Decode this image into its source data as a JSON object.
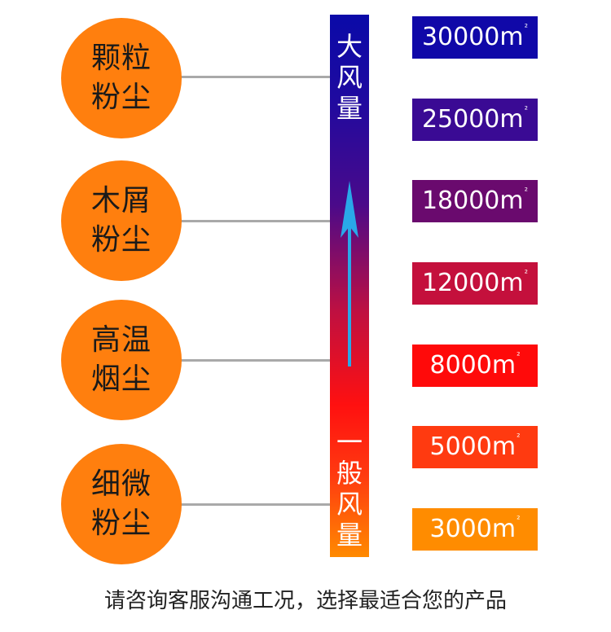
{
  "categories": [
    {
      "line1": "颗粒",
      "line2": "粉尘"
    },
    {
      "line1": "木屑",
      "line2": "粉尘"
    },
    {
      "line1": "高温",
      "line2": "烟尘"
    },
    {
      "line1": "细微",
      "line2": "粉尘"
    }
  ],
  "scale": {
    "top_label": [
      "大",
      "风",
      "量"
    ],
    "bottom_label": [
      "一",
      "般",
      "风",
      "量"
    ]
  },
  "volumes": [
    {
      "value": "30000",
      "unit": "m",
      "sup": "²",
      "color": "#1008a8"
    },
    {
      "value": "25000",
      "unit": "m",
      "sup": "²",
      "color": "#3a0a94"
    },
    {
      "value": "18000",
      "unit": "m",
      "sup": "²",
      "color": "#6a0a6e"
    },
    {
      "value": "12000",
      "unit": "m",
      "sup": "²",
      "color": "#c4103c"
    },
    {
      "value": "8000",
      "unit": "m",
      "sup": "²",
      "color": "#ff0a0a"
    },
    {
      "value": "5000",
      "unit": "m",
      "sup": "²",
      "color": "#ff3a10"
    },
    {
      "value": "3000",
      "unit": "m",
      "sup": "²",
      "color": "#ff8c00"
    }
  ],
  "footer": "请咨询客服沟通工况，选择最适合您的产品"
}
